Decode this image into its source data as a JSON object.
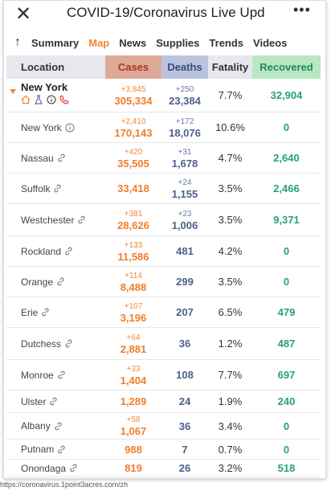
{
  "header": {
    "title": "COVID-19/Coronavirus Live Upd"
  },
  "tabs": [
    "Summary",
    "Map",
    "News",
    "Supplies",
    "Trends",
    "Videos"
  ],
  "table": {
    "columns": [
      "Location",
      "Cases",
      "Deaths",
      "Fatality",
      "Recovered"
    ],
    "rows": [
      {
        "location": "New York",
        "new_cases": "+3,845",
        "cases": "305,334",
        "new_deaths": "+250",
        "deaths": "23,384",
        "fatality": "7.7%",
        "recovered": "32,904"
      },
      {
        "location": "New York",
        "new_cases": "+2,410",
        "cases": "170,143",
        "new_deaths": "+172",
        "deaths": "18,076",
        "fatality": "10.6%",
        "recovered": "0"
      },
      {
        "location": "Nassau",
        "new_cases": "+420",
        "cases": "35,505",
        "new_deaths": "+31",
        "deaths": "1,678",
        "fatality": "4.7%",
        "recovered": "2,640"
      },
      {
        "location": "Suffolk",
        "cases": "33,418",
        "new_deaths": "+24",
        "deaths": "1,155",
        "fatality": "3.5%",
        "recovered": "2,466"
      },
      {
        "location": "Westchester",
        "new_cases": "+381",
        "cases": "28,626",
        "new_deaths": "+23",
        "deaths": "1,006",
        "fatality": "3.5%",
        "recovered": "9,371"
      },
      {
        "location": "Rockland",
        "new_cases": "+133",
        "cases": "11,586",
        "deaths": "481",
        "fatality": "4.2%",
        "recovered": "0"
      },
      {
        "location": "Orange",
        "new_cases": "+114",
        "cases": "8,488",
        "deaths": "299",
        "fatality": "3.5%",
        "recovered": "0"
      },
      {
        "location": "Erie",
        "new_cases": "+107",
        "cases": "3,196",
        "deaths": "207",
        "fatality": "6.5%",
        "recovered": "479"
      },
      {
        "location": "Dutchess",
        "new_cases": "+64",
        "cases": "2,881",
        "deaths": "36",
        "fatality": "1.2%",
        "recovered": "487"
      },
      {
        "location": "Monroe",
        "new_cases": "+33",
        "cases": "1,404",
        "deaths": "108",
        "fatality": "7.7%",
        "recovered": "697"
      },
      {
        "location": "Ulster",
        "cases": "1,289",
        "deaths": "24",
        "fatality": "1.9%",
        "recovered": "240"
      },
      {
        "location": "Albany",
        "new_cases": "+58",
        "cases": "1,067",
        "deaths": "36",
        "fatality": "3.4%",
        "recovered": "0"
      },
      {
        "location": "Putnam",
        "cases": "988",
        "deaths": "7",
        "fatality": "0.7%",
        "recovered": "0"
      },
      {
        "location": "Onondaga",
        "cases": "819",
        "deaths": "26",
        "fatality": "3.2%",
        "recovered": "518"
      }
    ]
  },
  "footer": {
    "url": "https://coronavirus.1point3acres.com/zh"
  }
}
